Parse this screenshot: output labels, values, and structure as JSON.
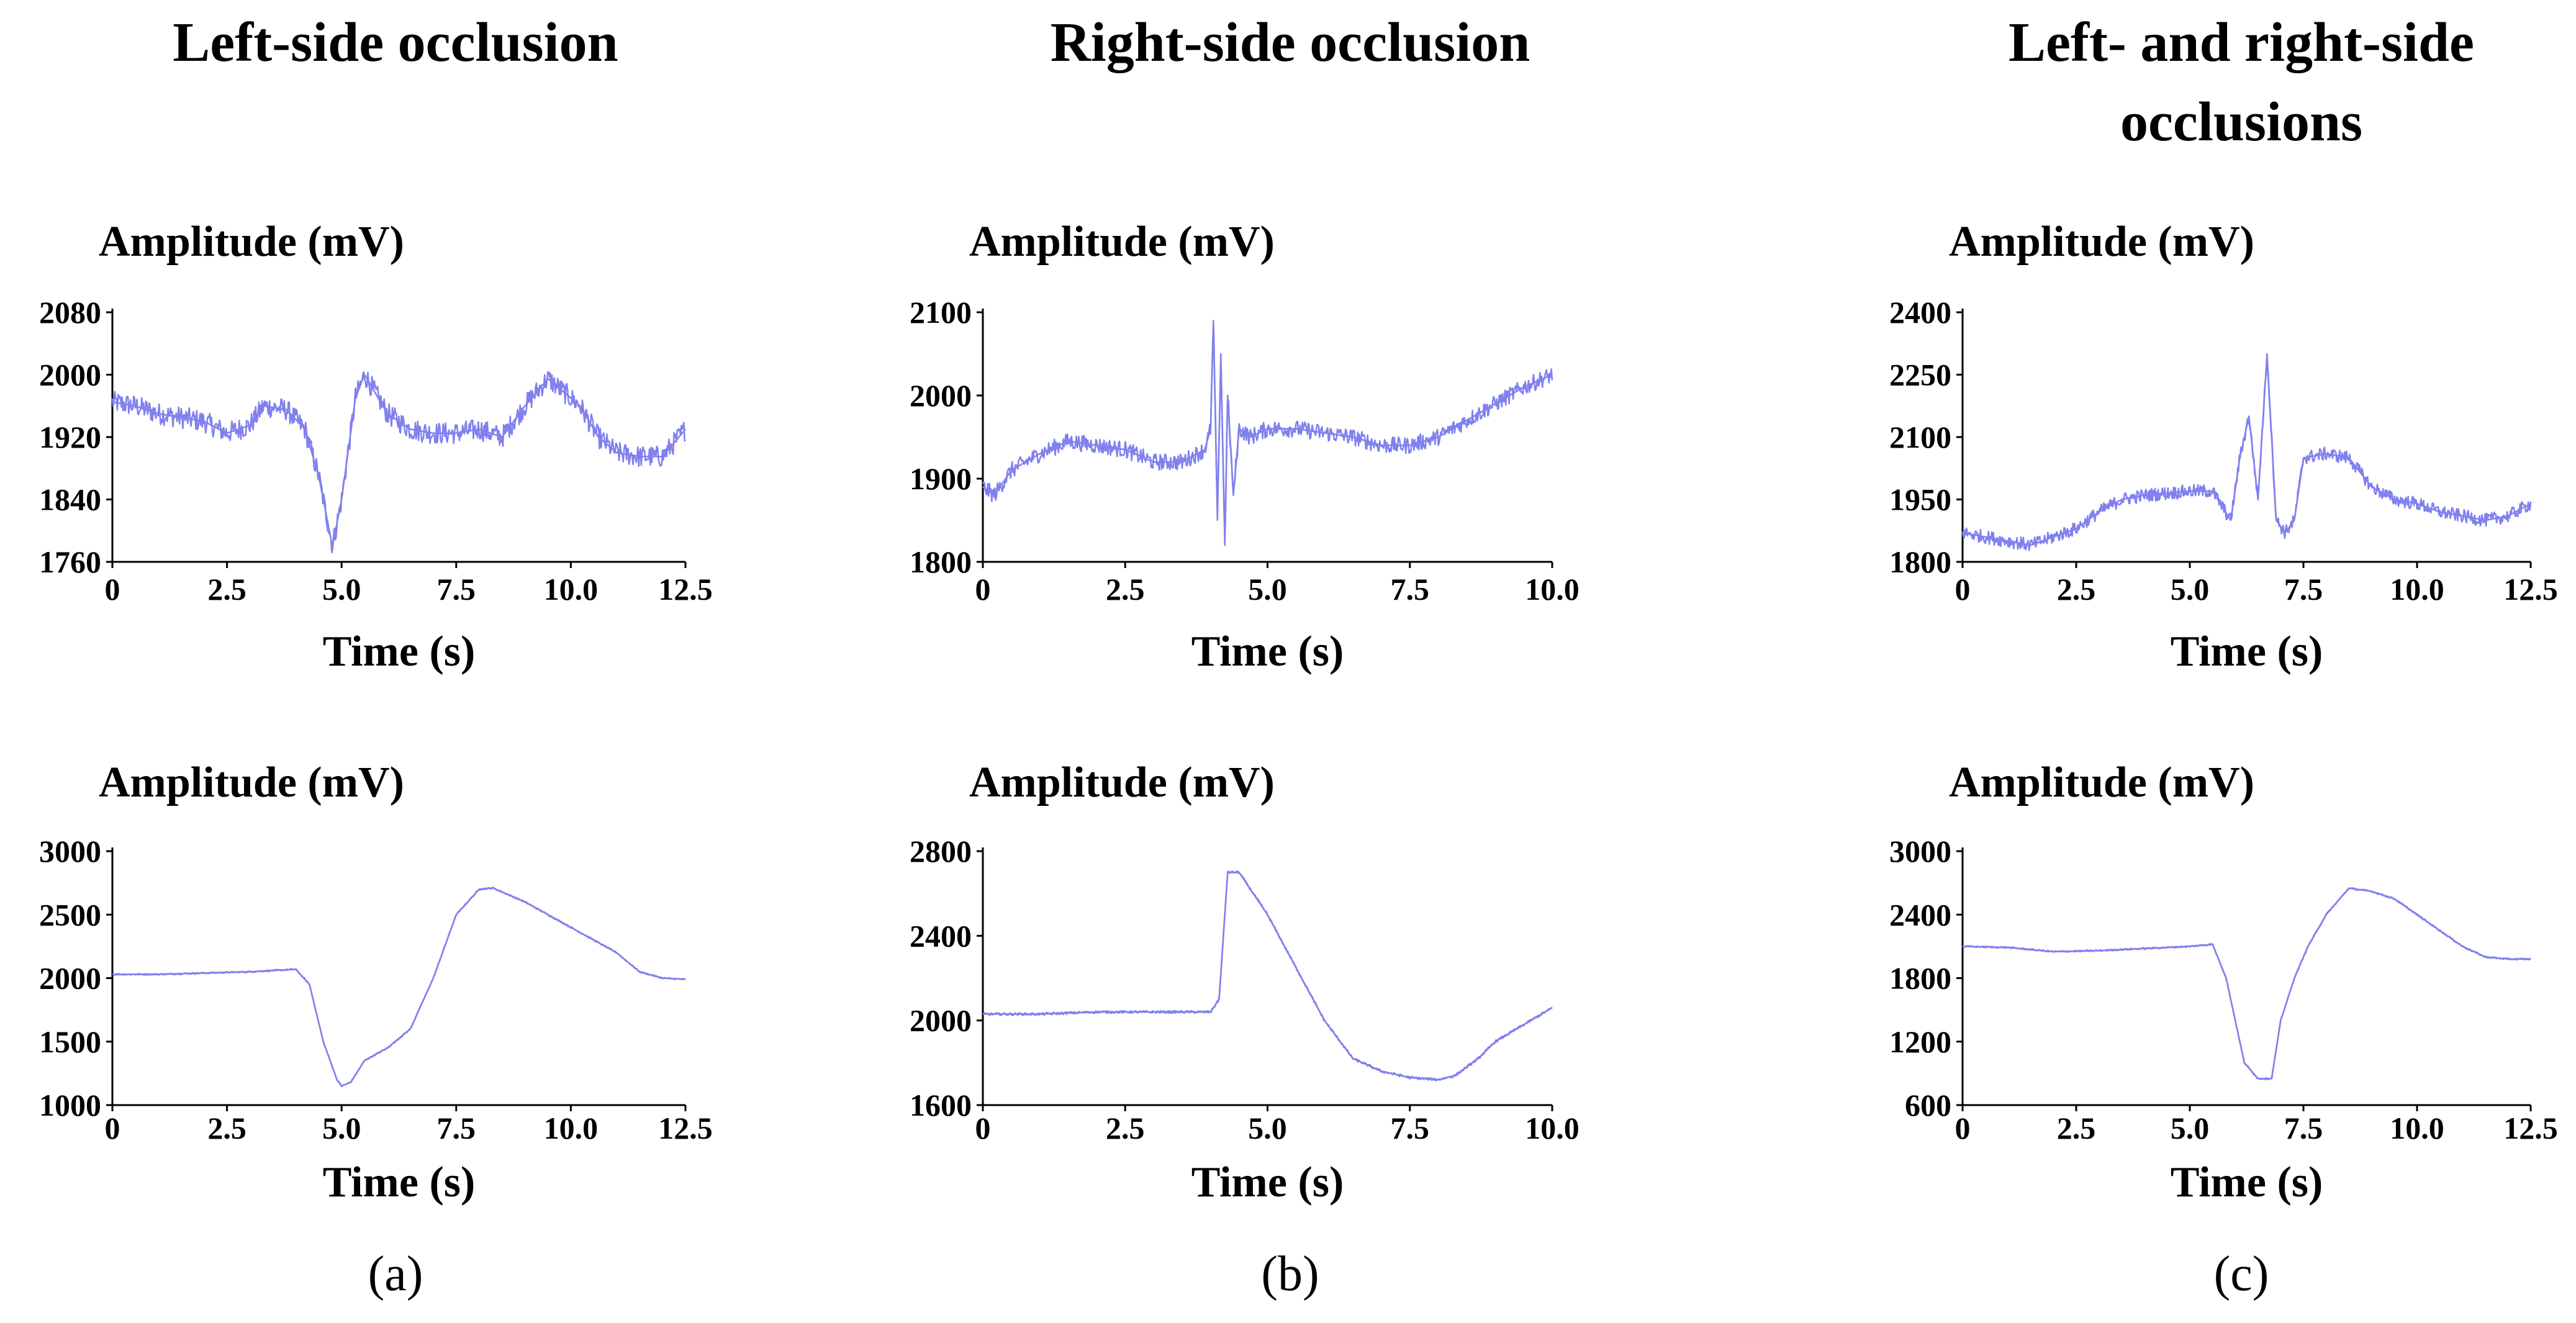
{
  "colors": {
    "signal": "#8080ee",
    "axis": "#000000",
    "background": "#ffffff"
  },
  "columns": [
    {
      "title_lines": [
        "Left-side occlusion"
      ],
      "panel_label": "(a)"
    },
    {
      "title_lines": [
        "Right-side occlusion"
      ],
      "panel_label": "(b)"
    },
    {
      "title_lines": [
        "Left- and right-side",
        "occlusions"
      ],
      "panel_label": "(c)"
    }
  ],
  "chart_data": [
    {
      "id": "a-top",
      "type": "line",
      "ylabel": "Amplitude (mV)",
      "xlabel": "Time (s)",
      "xlim": [
        0,
        12.5
      ],
      "ylim": [
        1760,
        2080
      ],
      "xticks": [
        0,
        2.5,
        5.0,
        7.5,
        10.0,
        12.5
      ],
      "xtick_labels": [
        "0",
        "2.5",
        "5.0",
        "7.5",
        "10.0",
        "12.5"
      ],
      "yticks": [
        1760,
        1840,
        1920,
        2000,
        2080
      ],
      "ytick_labels": [
        "1760",
        "1840",
        "1920",
        "2000",
        "2080"
      ],
      "series": [
        {
          "name": "signal",
          "noise": 14,
          "x": [
            0,
            0.5,
            1,
            1.5,
            2,
            2.5,
            3,
            3.3,
            3.8,
            4.2,
            4.5,
            4.8,
            5,
            5.3,
            5.5,
            6,
            6.5,
            7,
            7.5,
            8,
            8.5,
            9,
            9.5,
            9.8,
            10.2,
            10.6,
            11,
            11.5,
            12,
            12.5
          ],
          "y": [
            1965,
            1960,
            1950,
            1945,
            1940,
            1925,
            1935,
            1960,
            1955,
            1930,
            1870,
            1780,
            1840,
            1970,
            2000,
            1950,
            1930,
            1925,
            1925,
            1930,
            1920,
            1960,
            1995,
            1980,
            1960,
            1920,
            1900,
            1895,
            1895,
            1930
          ]
        }
      ]
    },
    {
      "id": "a-bottom",
      "type": "line",
      "ylabel": "Amplitude (mV)",
      "xlabel": "Time (s)",
      "xlim": [
        0,
        12.5
      ],
      "ylim": [
        1000,
        3000
      ],
      "xticks": [
        0,
        2.5,
        5.0,
        7.5,
        10.0,
        12.5
      ],
      "xtick_labels": [
        "0",
        "2.5",
        "5.0",
        "7.5",
        "10.0",
        "12.5"
      ],
      "yticks": [
        1000,
        1500,
        2000,
        2500,
        3000
      ],
      "ytick_labels": [
        "1000",
        "1500",
        "2000",
        "2500",
        "3000"
      ],
      "series": [
        {
          "name": "signal",
          "noise": 6,
          "x": [
            0,
            1,
            2,
            3,
            3.5,
            4,
            4.3,
            4.6,
            4.9,
            5.0,
            5.2,
            5.5,
            6,
            6.5,
            7,
            7.5,
            8,
            8.3,
            9,
            10,
            11,
            11.5,
            12,
            12.5
          ],
          "y": [
            2030,
            2030,
            2040,
            2050,
            2060,
            2070,
            1950,
            1500,
            1200,
            1150,
            1180,
            1350,
            1450,
            1600,
            2000,
            2500,
            2700,
            2710,
            2600,
            2400,
            2200,
            2050,
            2000,
            1990
          ]
        }
      ]
    },
    {
      "id": "b-top",
      "type": "line",
      "ylabel": "Amplitude (mV)",
      "xlabel": "Time (s)",
      "xlim": [
        0,
        10.0
      ],
      "ylim": [
        1800,
        2100
      ],
      "xticks": [
        0,
        2.5,
        5.0,
        7.5,
        10.0
      ],
      "xtick_labels": [
        "0",
        "2.5",
        "5.0",
        "7.5",
        "10.0"
      ],
      "yticks": [
        1800,
        1900,
        2000,
        2100
      ],
      "ytick_labels": [
        "1800",
        "1900",
        "2000",
        "2100"
      ],
      "series": [
        {
          "name": "signal",
          "noise": 10,
          "x": [
            0,
            0.2,
            0.5,
            1,
            1.5,
            2,
            2.5,
            3,
            3.5,
            3.9,
            4.0,
            4.05,
            4.12,
            4.18,
            4.25,
            4.3,
            4.4,
            4.5,
            4.7,
            5,
            5.5,
            6,
            6.5,
            7,
            7.5,
            8,
            8.5,
            9,
            9.5,
            10
          ],
          "y": [
            1890,
            1880,
            1910,
            1930,
            1945,
            1940,
            1935,
            1920,
            1920,
            1935,
            1960,
            2090,
            1850,
            2050,
            1820,
            2000,
            1880,
            1960,
            1950,
            1960,
            1960,
            1955,
            1950,
            1940,
            1940,
            1950,
            1970,
            1990,
            2010,
            2025
          ]
        }
      ]
    },
    {
      "id": "b-bottom",
      "type": "line",
      "ylabel": "Amplitude (mV)",
      "xlabel": "Time (s)",
      "xlim": [
        0,
        10.0
      ],
      "ylim": [
        1600,
        2800
      ],
      "xticks": [
        0,
        2.5,
        5.0,
        7.5,
        10.0
      ],
      "xtick_labels": [
        "0",
        "2.5",
        "5.0",
        "7.5",
        "10.0"
      ],
      "yticks": [
        1600,
        2000,
        2400,
        2800
      ],
      "ytick_labels": [
        "1600",
        "2000",
        "2400",
        "2800"
      ],
      "series": [
        {
          "name": "signal",
          "noise": 6,
          "x": [
            0,
            1,
            2,
            3,
            4,
            4.15,
            4.3,
            4.5,
            5,
            5.5,
            6,
            6.5,
            7,
            7.5,
            8,
            8.3,
            8.7,
            9,
            9.5,
            10
          ],
          "y": [
            2030,
            2030,
            2040,
            2040,
            2040,
            2100,
            2700,
            2700,
            2500,
            2250,
            2000,
            1820,
            1760,
            1730,
            1720,
            1740,
            1820,
            1900,
            1980,
            2060
          ]
        }
      ]
    },
    {
      "id": "c-top",
      "type": "line",
      "ylabel": "Amplitude (mV)",
      "xlabel": "Time (s)",
      "xlim": [
        0,
        12.5
      ],
      "ylim": [
        1800,
        2400
      ],
      "xticks": [
        0,
        2.5,
        5.0,
        7.5,
        10.0,
        12.5
      ],
      "xtick_labels": [
        "0",
        "2.5",
        "5.0",
        "7.5",
        "10.0",
        "12.5"
      ],
      "yticks": [
        1800,
        1950,
        2100,
        2250,
        2400
      ],
      "ytick_labels": [
        "1800",
        "1950",
        "2100",
        "2250",
        "2400"
      ],
      "series": [
        {
          "name": "signal",
          "noise": 16,
          "x": [
            0,
            0.5,
            1,
            1.5,
            2,
            2.5,
            3,
            3.5,
            4,
            4.5,
            5,
            5.5,
            5.9,
            6.1,
            6.3,
            6.5,
            6.7,
            6.9,
            7.1,
            7.3,
            7.5,
            8,
            8.5,
            9,
            9.5,
            10,
            10.5,
            11,
            11.5,
            12,
            12.5
          ],
          "y": [
            1870,
            1860,
            1850,
            1840,
            1860,
            1880,
            1920,
            1950,
            1960,
            1965,
            1970,
            1970,
            1900,
            2050,
            2150,
            1950,
            2300,
            1900,
            1870,
            1900,
            2050,
            2060,
            2050,
            1980,
            1950,
            1940,
            1920,
            1910,
            1900,
            1910,
            1940
          ]
        }
      ]
    },
    {
      "id": "c-bottom",
      "type": "line",
      "ylabel": "Amplitude (mV)",
      "xlabel": "Time (s)",
      "xlim": [
        0,
        12.5
      ],
      "ylim": [
        600,
        3000
      ],
      "xticks": [
        0,
        2.5,
        5.0,
        7.5,
        10.0,
        12.5
      ],
      "xtick_labels": [
        "0",
        "2.5",
        "5.0",
        "7.5",
        "10.0",
        "12.5"
      ],
      "yticks": [
        600,
        1200,
        1800,
        2400,
        3000
      ],
      "ytick_labels": [
        "600",
        "1200",
        "1800",
        "2400",
        "3000"
      ],
      "series": [
        {
          "name": "signal",
          "noise": 8,
          "x": [
            0,
            1,
            2,
            3,
            4,
            5,
            5.5,
            5.8,
            6.0,
            6.2,
            6.5,
            6.8,
            7.0,
            7.3,
            7.6,
            8,
            8.5,
            9,
            9.5,
            10,
            11,
            11.5,
            12,
            12.5
          ],
          "y": [
            2100,
            2090,
            2050,
            2060,
            2080,
            2100,
            2120,
            1800,
            1400,
            1000,
            850,
            850,
            1400,
            1800,
            2100,
            2400,
            2650,
            2620,
            2550,
            2400,
            2100,
            2000,
            1980,
            1980
          ]
        }
      ]
    }
  ]
}
